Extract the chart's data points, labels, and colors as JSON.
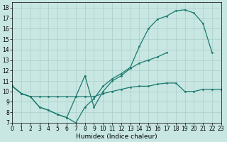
{
  "xlabel": "Humidex (Indice chaleur)",
  "bg_color": "#c8e6e2",
  "line_color": "#1a7a6e",
  "grid_color": "#aacfcb",
  "xlim": [
    0,
    23
  ],
  "ylim": [
    7,
    18.5
  ],
  "xticks": [
    0,
    1,
    2,
    3,
    4,
    5,
    6,
    7,
    8,
    9,
    10,
    11,
    12,
    13,
    14,
    15,
    16,
    17,
    18,
    19,
    20,
    21,
    22,
    23
  ],
  "yticks": [
    7,
    8,
    9,
    10,
    11,
    12,
    13,
    14,
    15,
    16,
    17,
    18
  ],
  "line1_x": [
    0,
    1,
    2,
    3,
    4,
    5,
    6,
    7,
    8,
    9,
    10,
    11,
    12,
    13,
    14,
    15,
    16,
    17,
    18,
    19,
    20,
    21,
    22
  ],
  "line1_y": [
    10.5,
    9.8,
    9.5,
    8.5,
    8.2,
    7.8,
    7.5,
    7.0,
    8.5,
    9.3,
    10.5,
    11.2,
    11.7,
    12.3,
    14.3,
    16.0,
    16.9,
    17.2,
    17.7,
    17.8,
    17.5,
    16.5,
    13.7
  ],
  "line2_x": [
    0,
    1,
    2,
    3,
    4,
    5,
    6,
    7,
    8,
    9,
    10,
    11,
    12,
    13,
    14,
    15,
    16,
    17
  ],
  "line2_y": [
    10.5,
    9.8,
    9.5,
    8.5,
    8.2,
    7.8,
    7.5,
    9.5,
    11.5,
    8.5,
    10.0,
    11.0,
    11.5,
    12.2,
    12.7,
    13.0,
    13.3,
    13.7
  ],
  "line3_x": [
    0,
    1,
    2,
    3,
    4,
    5,
    6,
    7,
    8,
    9,
    10,
    11,
    12,
    13,
    14,
    15,
    16,
    17,
    18,
    19,
    20,
    21,
    22,
    23
  ],
  "line3_y": [
    10.5,
    9.8,
    9.5,
    9.5,
    9.5,
    9.5,
    9.5,
    9.5,
    9.5,
    9.5,
    9.8,
    10.0,
    10.2,
    10.4,
    10.5,
    10.5,
    10.7,
    10.8,
    10.8,
    10.0,
    10.0,
    10.2,
    10.2,
    10.2
  ],
  "linewidth": 0.9,
  "marker_size": 2.0,
  "label_fontsize": 5.5,
  "xlabel_fontsize": 6.5
}
